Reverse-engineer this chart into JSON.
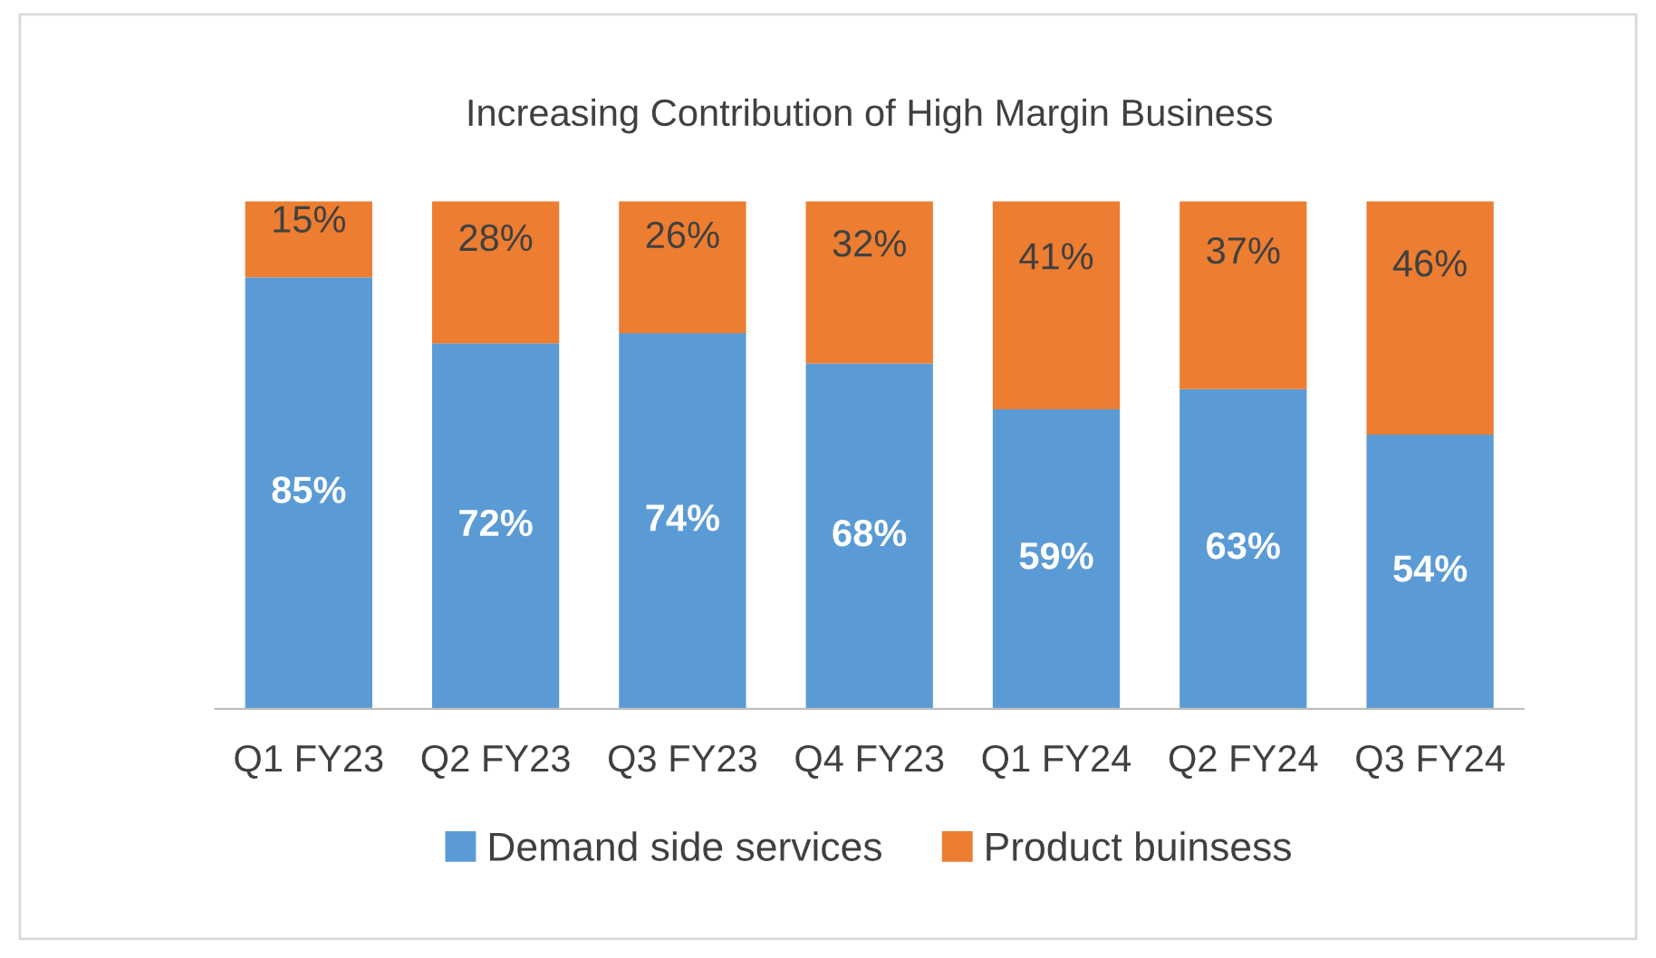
{
  "chart_data": {
    "type": "bar",
    "title": "Increasing Contribution of High Margin Business",
    "categories": [
      "Q1 FY23",
      "Q2 FY23",
      "Q3 FY23",
      "Q4 FY23",
      "Q1 FY24",
      "Q2 FY24",
      "Q3 FY24"
    ],
    "stacked": true,
    "legend": "bottom",
    "series": [
      {
        "name": "Demand side services",
        "color": "#5b9bd5",
        "values": [
          85,
          72,
          74,
          68,
          59,
          63,
          54
        ],
        "value_labels": [
          "85%",
          "72%",
          "74%",
          "68%",
          "59%",
          "63%",
          "54%"
        ]
      },
      {
        "name": "Product buinsess",
        "color": "#ed7d31",
        "values": [
          15,
          28,
          26,
          32,
          41,
          37,
          46
        ],
        "value_labels": [
          "15%",
          "28%",
          "26%",
          "32%",
          "41%",
          "37%",
          "46%"
        ]
      }
    ]
  }
}
